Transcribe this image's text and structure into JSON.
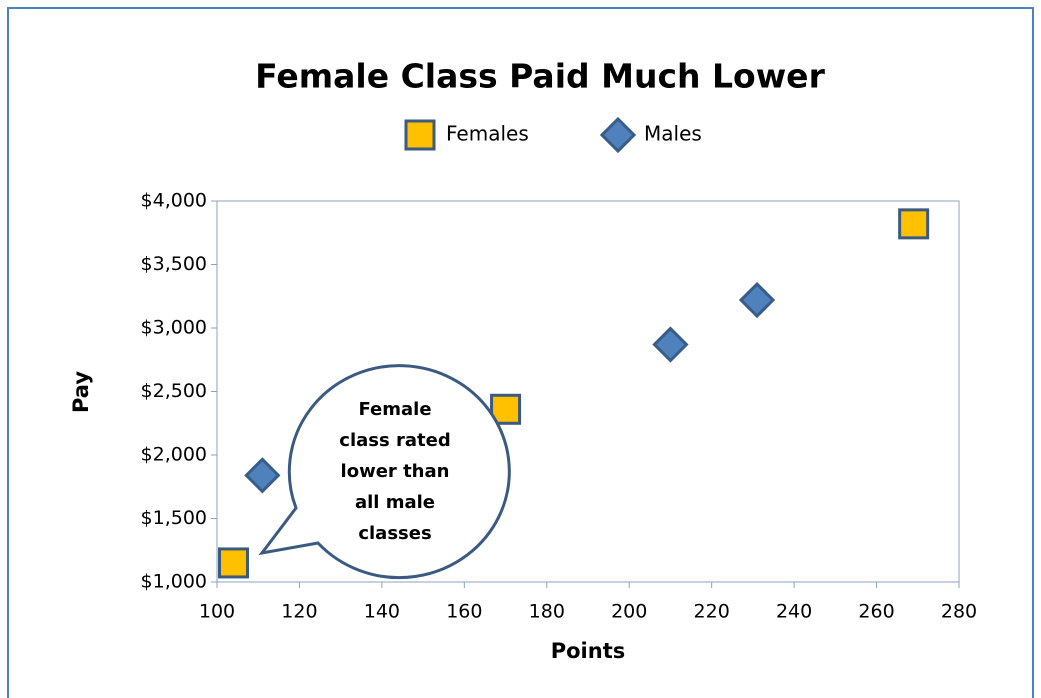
{
  "chart_data": {
    "type": "scatter",
    "title": "Female Class Paid Much Lower",
    "x_label": "Points",
    "y_label": "Pay",
    "xlim": [
      100,
      280
    ],
    "xticks": [
      100,
      120,
      140,
      160,
      180,
      200,
      220,
      240,
      260,
      280
    ],
    "ylim": [
      1000,
      4000
    ],
    "yticks": [
      {
        "value": 1000,
        "label": "$1,000"
      },
      {
        "value": 1500,
        "label": "$1,500"
      },
      {
        "value": 2000,
        "label": "$2,000"
      },
      {
        "value": 2500,
        "label": "$2,500"
      },
      {
        "value": 3000,
        "label": "$3,000"
      },
      {
        "value": 3500,
        "label": "$3,500"
      },
      {
        "value": 4000,
        "label": "$4,000"
      }
    ],
    "legend": "top",
    "series": [
      {
        "name": "Females",
        "color": "#ffc000",
        "marker": "square",
        "x": [
          104,
          170,
          269
        ],
        "values": [
          1150,
          2360,
          3820
        ]
      },
      {
        "name": "Males",
        "color": "#4f81bd",
        "marker": "diamond",
        "x": [
          111,
          210,
          231
        ],
        "values": [
          1840,
          2870,
          3220
        ]
      }
    ],
    "annotation": [
      "Female",
      "class rated",
      "lower than",
      "all male",
      "classes"
    ]
  }
}
